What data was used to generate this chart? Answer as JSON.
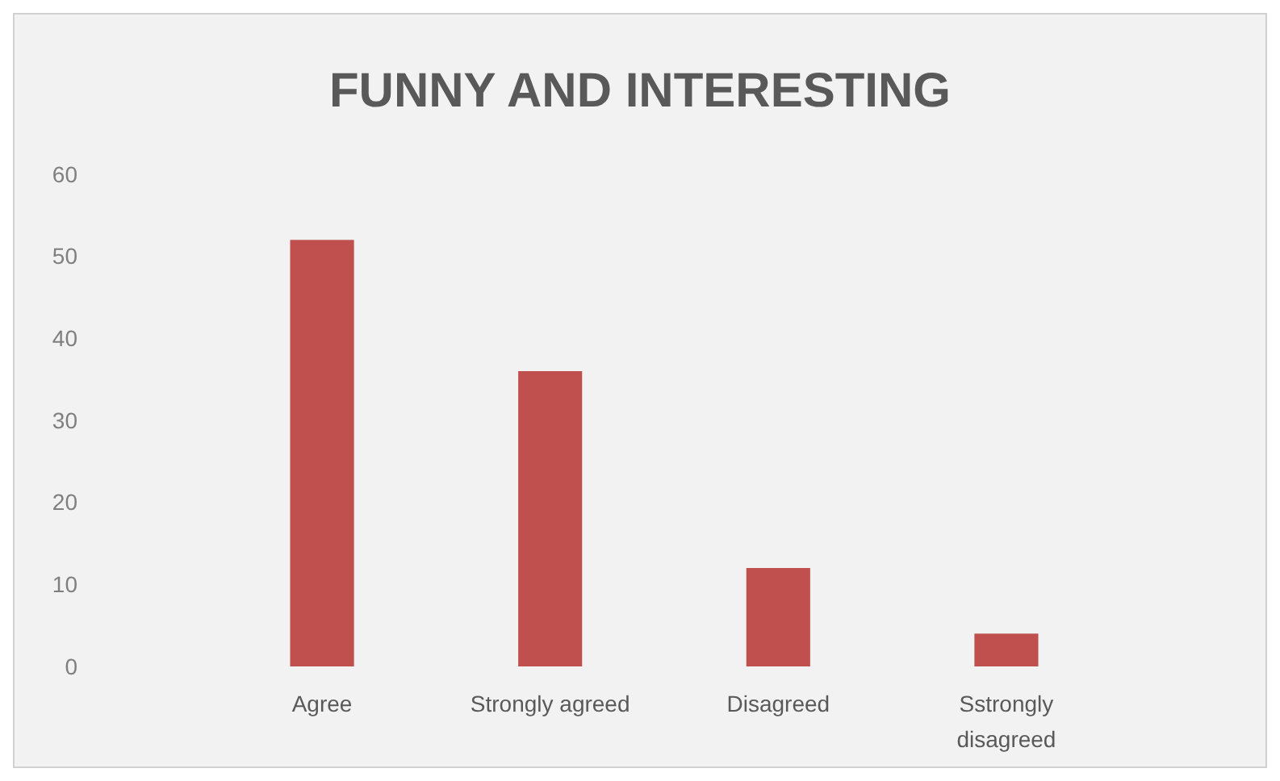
{
  "chart_data": {
    "type": "bar",
    "title": "FUNNY AND INTERESTING",
    "categories": [
      "Agree",
      "Strongly agreed",
      "Disagreed",
      "Sstrongly disagreed"
    ],
    "values": [
      52,
      36,
      12,
      4
    ],
    "color": "#c0504d",
    "ylim": [
      0,
      60
    ],
    "yticks": [
      0,
      10,
      20,
      30,
      40,
      50,
      60
    ],
    "grid": false
  }
}
